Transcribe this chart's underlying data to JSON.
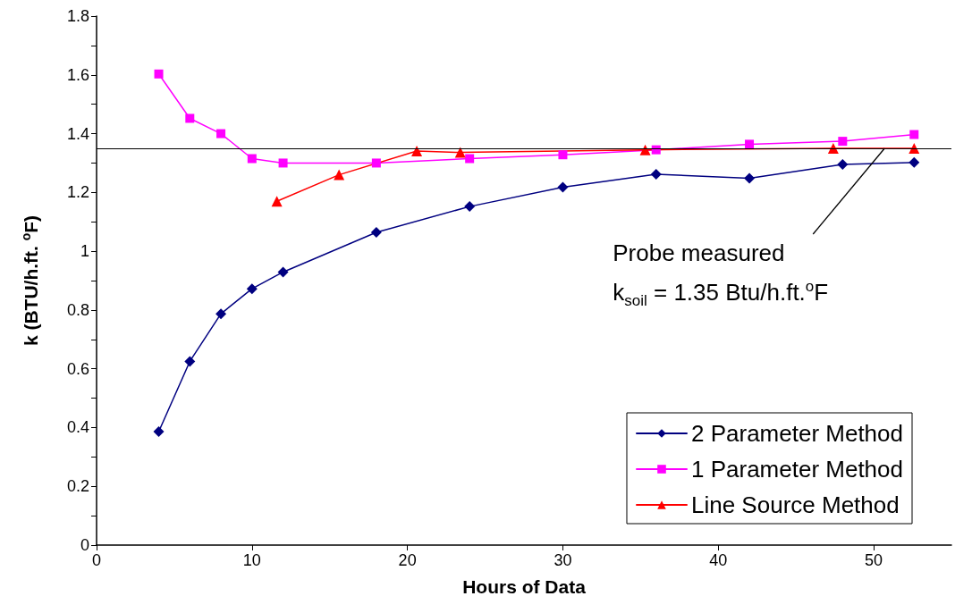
{
  "chart_data": {
    "type": "line",
    "xlabel": "Hours of Data",
    "ylabel": "k (BTU/h.ft. $^{o}$F)",
    "xlim": [
      0,
      55
    ],
    "xticks": [
      0,
      10,
      20,
      30,
      40,
      50
    ],
    "ylim": [
      0,
      1.8
    ],
    "yticks": [
      0,
      {
        "value": 0.1,
        "label": null
      },
      0.2,
      {
        "value": 0.3,
        "label": null
      },
      0.4,
      {
        "value": 0.5,
        "label": null
      },
      0.6,
      {
        "value": 0.7,
        "label": null
      },
      0.8,
      {
        "value": 0.9,
        "label": null
      },
      1,
      {
        "value": 1.1,
        "label": null
      },
      1.2,
      {
        "value": 1.3,
        "label": null
      },
      1.4,
      {
        "value": 1.5,
        "label": null
      },
      1.6,
      {
        "value": 1.7,
        "label": null
      },
      1.8
    ],
    "grid": false,
    "legend": "bottom right",
    "line_style": "solid",
    "series": [
      {
        "name": "2 Parameter Method",
        "color": "#000080",
        "marker": "diamond",
        "x": [
          4,
          6,
          8,
          10,
          12,
          18,
          24,
          30,
          36,
          42,
          48,
          52.6
        ],
        "values": [
          0.386,
          0.625,
          0.787,
          0.872,
          0.929,
          1.064,
          1.152,
          1.218,
          1.262,
          1.248,
          1.295,
          1.302
        ]
      },
      {
        "name": "1 Parameter Method",
        "color": "#ff00ff",
        "marker": "square",
        "x": [
          4,
          6,
          8,
          10,
          12,
          18,
          24,
          30,
          36,
          42,
          48,
          52.6
        ],
        "values": [
          1.603,
          1.452,
          1.4,
          1.315,
          1.3,
          1.3,
          1.315,
          1.328,
          1.345,
          1.364,
          1.374,
          1.397
        ]
      },
      {
        "name": "Line Source Method",
        "color": "#ff0000",
        "marker": "triangle",
        "x": [
          11.6,
          15.6,
          20.6,
          23.4,
          35.3,
          47.4,
          52.6
        ],
        "values": [
          1.17,
          1.26,
          1.341,
          1.336,
          1.345,
          1.35,
          1.35
        ]
      }
    ],
    "ref_lines": [
      {
        "axis": "y",
        "value": 1.35,
        "color": "#000000"
      }
    ],
    "annotations": [
      {
        "text": "Probe measured\nk$_{soil}$ = 1.35 Btu/h.ft.$^{o}$F",
        "x": 50.7,
        "y": 1.35
      }
    ]
  }
}
